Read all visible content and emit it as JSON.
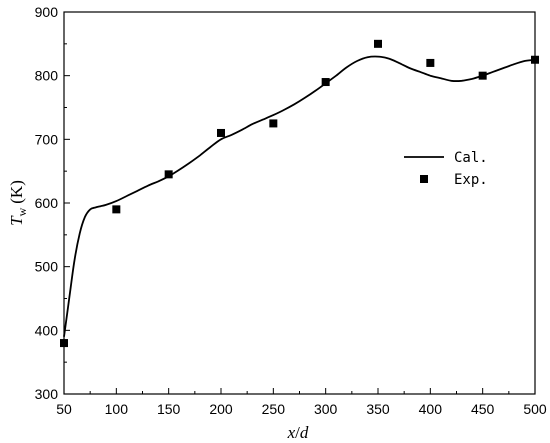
{
  "chart_data": {
    "type": "line",
    "xlabel": {
      "text": "x/d",
      "var1": "x",
      "slash": "/",
      "var2": "d"
    },
    "ylabel": {
      "text": "T_w (K)",
      "symbol": "T",
      "subscript": "w",
      "unit": "(K)"
    },
    "xlim": [
      50,
      500
    ],
    "ylim": [
      300,
      900
    ],
    "xticks": [
      50,
      100,
      150,
      200,
      250,
      300,
      350,
      400,
      450,
      500
    ],
    "yticks": [
      300,
      400,
      500,
      600,
      700,
      800,
      900
    ],
    "grid": false,
    "legend_position": "middle-right",
    "series": [
      {
        "name": "Cal.",
        "style": "line",
        "color": "#000000",
        "x": [
          50,
          55,
          60,
          65,
          70,
          75,
          80,
          85,
          90,
          100,
          110,
          120,
          130,
          140,
          150,
          160,
          170,
          180,
          190,
          200,
          210,
          220,
          230,
          240,
          250,
          260,
          270,
          280,
          290,
          300,
          310,
          320,
          330,
          340,
          350,
          360,
          370,
          380,
          390,
          400,
          410,
          420,
          430,
          440,
          450,
          460,
          470,
          480,
          490,
          500
        ],
        "y": [
          390,
          450,
          510,
          552,
          578,
          590,
          593,
          595,
          597,
          603,
          611,
          619,
          627,
          634,
          642,
          652,
          663,
          675,
          688,
          700,
          707,
          715,
          724,
          731,
          738,
          746,
          755,
          765,
          776,
          788,
          800,
          813,
          823,
          829,
          830,
          827,
          820,
          812,
          806,
          800,
          796,
          792,
          792,
          795,
          800,
          806,
          812,
          818,
          823,
          825
        ]
      },
      {
        "name": "Exp.",
        "style": "square-marker",
        "color": "#000000",
        "x": [
          50,
          100,
          150,
          200,
          250,
          300,
          350,
          400,
          450,
          500
        ],
        "y": [
          380,
          590,
          645,
          710,
          725,
          790,
          850,
          820,
          800,
          825
        ]
      }
    ]
  }
}
